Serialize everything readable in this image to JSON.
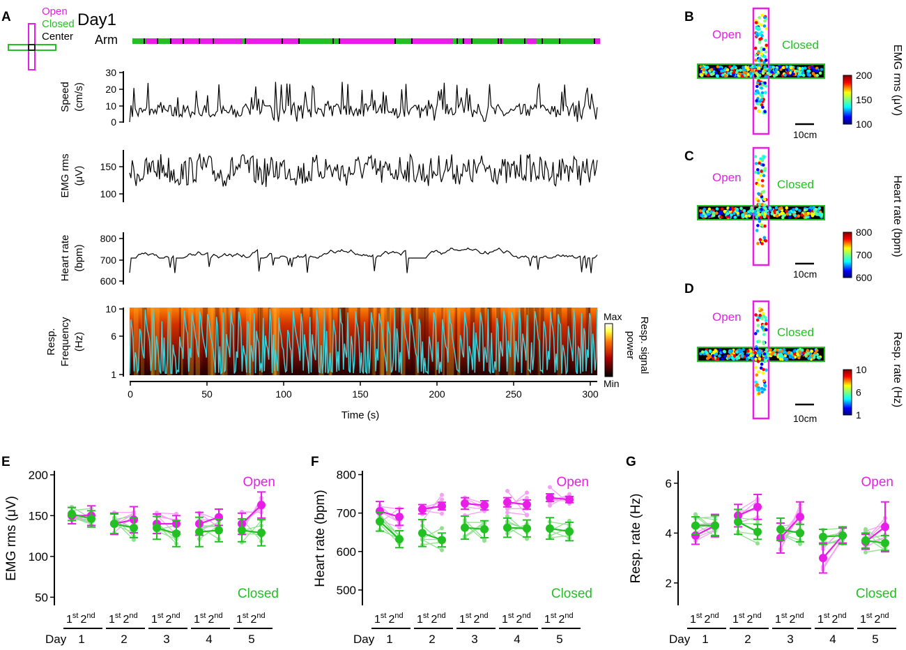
{
  "colors": {
    "open": "#e81ee8",
    "closed": "#22c022",
    "center": "#000000",
    "trace": "#000000",
    "resp": "#40d0d8"
  },
  "panel_labels": [
    "A",
    "B",
    "C",
    "D",
    "E",
    "F",
    "G"
  ],
  "panel_a": {
    "day_title": "Day1",
    "legend": {
      "open": "Open",
      "closed": "Closed",
      "center": "Center"
    },
    "arm_label": "Arm",
    "xlabel": "Time (s)",
    "x_ticks": [
      "0",
      "50",
      "100",
      "150",
      "200",
      "250",
      "300"
    ],
    "speed": {
      "label1": "Speed",
      "label2": "(cm/s)",
      "ticks": [
        "0",
        "10",
        "20",
        "30"
      ]
    },
    "emg": {
      "label1": "EMG rms",
      "label2": "(μV)",
      "ticks": [
        "100",
        "150"
      ]
    },
    "hr": {
      "label1": "Heart rate",
      "label2": "(bpm)",
      "ticks": [
        "600",
        "700",
        "800"
      ]
    },
    "resp": {
      "label1": "Resp.",
      "label2": "Frequency",
      "label3": "(Hz)",
      "ticks": [
        "1",
        "6",
        "10"
      ]
    },
    "colorbar": {
      "max": "Max",
      "min": "Min",
      "label1": "Resp. signal",
      "label2": "power"
    }
  },
  "maps": [
    {
      "open": "Open",
      "closed": "Closed",
      "scale": "10cm",
      "cb_label": "EMG rms (μV)",
      "cb_ticks": [
        "100",
        "150",
        "200"
      ]
    },
    {
      "open": "Open",
      "closed": "Closed",
      "scale": "10cm",
      "cb_label": "Heart rate (bpm)",
      "cb_ticks": [
        "600",
        "700",
        "800"
      ]
    },
    {
      "open": "Open",
      "closed": "Closed",
      "scale": "10cm",
      "cb_label": "Resp. rate (Hz)",
      "cb_ticks": [
        "1",
        "6",
        "10"
      ]
    }
  ],
  "half_labels": {
    "first": "1",
    "second": "2",
    "first_sup": "st",
    "second_sup": "nd"
  },
  "day_label": "Day",
  "days": [
    "1",
    "2",
    "3",
    "4",
    "5"
  ],
  "chart_data": [
    {
      "type": "scatter",
      "title": "EMG rms",
      "ylabel": "EMG rms (μV)",
      "ylim": [
        40,
        205
      ],
      "yticks": [
        "50",
        "100",
        "150",
        "200"
      ],
      "open_label": "Open",
      "closed_label": "Closed",
      "series": [
        {
          "name": "Open",
          "values": [
            150,
            150,
            140,
            145,
            140,
            140,
            140,
            148,
            140,
            163
          ],
          "err": [
            10,
            12,
            13,
            16,
            12,
            10,
            14,
            10,
            13,
            16
          ]
        },
        {
          "name": "Closed",
          "values": [
            152,
            146,
            140,
            135,
            135,
            128,
            130,
            132,
            132,
            129
          ],
          "err": [
            8,
            10,
            12,
            12,
            14,
            16,
            18,
            14,
            14,
            16
          ]
        }
      ]
    },
    {
      "type": "scatter",
      "title": "Heart rate",
      "ylabel": "Heart rate (bpm)",
      "ylim": [
        460,
        810
      ],
      "yticks": [
        "500",
        "600",
        "700",
        "800"
      ],
      "open_label": "Open",
      "closed_label": "Closed",
      "series": [
        {
          "name": "Open",
          "values": [
            705,
            690,
            710,
            718,
            725,
            720,
            728,
            722,
            740,
            735
          ],
          "err": [
            25,
            22,
            12,
            10,
            15,
            12,
            12,
            12,
            10,
            8
          ]
        },
        {
          "name": "Closed",
          "values": [
            678,
            632,
            648,
            630,
            662,
            658,
            662,
            660,
            660,
            652
          ],
          "err": [
            25,
            22,
            35,
            18,
            30,
            22,
            25,
            22,
            28,
            24
          ]
        }
      ]
    },
    {
      "type": "scatter",
      "title": "Resp. rate",
      "ylabel": "Resp. rate (Hz)",
      "ylim": [
        1.1,
        6.5
      ],
      "yticks": [
        "2",
        "4",
        "6"
      ],
      "open_label": "Open",
      "closed_label": "Closed",
      "series": [
        {
          "name": "Open",
          "values": [
            3.9,
            4.3,
            4.7,
            5.05,
            3.8,
            4.65,
            3.0,
            3.9,
            3.65,
            4.25
          ],
          "err": [
            0.35,
            0.45,
            0.45,
            0.5,
            0.6,
            0.6,
            0.6,
            0.3,
            0.3,
            1.0
          ]
        },
        {
          "name": "Closed",
          "values": [
            4.3,
            4.3,
            4.45,
            4.05,
            4.15,
            4.0,
            3.85,
            3.9,
            3.7,
            3.6
          ],
          "err": [
            0.35,
            0.4,
            0.5,
            0.3,
            0.45,
            0.35,
            0.3,
            0.35,
            0.3,
            0.3
          ]
        }
      ]
    }
  ]
}
